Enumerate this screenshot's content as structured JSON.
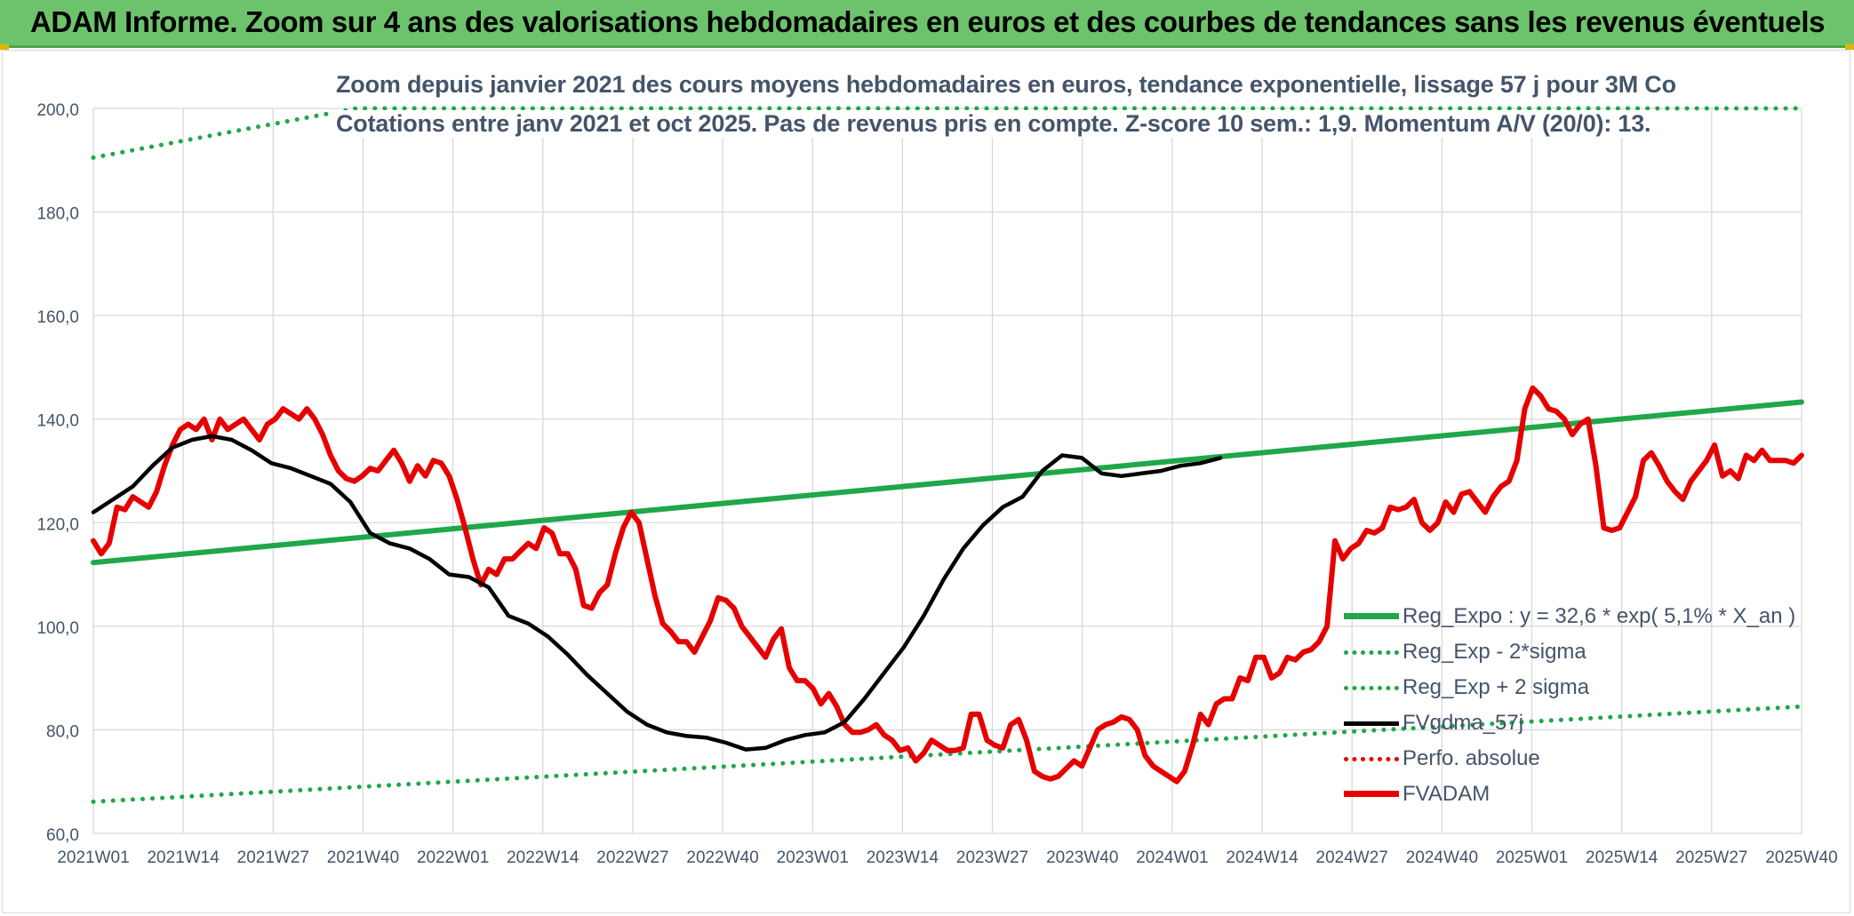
{
  "title": "ADAM Informe. Zoom sur 4 ans des valorisations hebdomadaires en euros et des courbes de tendances sans les revenus éventuels",
  "subtitle_1": "Zoom depuis janvier 2021 des cours moyens hebdomadaires en euros, tendance exponentielle, lissage 57 j pour 3M Co",
  "subtitle_2": "Cotations entre janv 2021 et oct 2025. Pas de revenus pris en compte. Z-score 10 sem.: 1,9. Momentum A/V (20/0): 13.",
  "colors": {
    "title_bar": "#6cc36b",
    "reg_expo": "#1fa74a",
    "sigma_bands": "#1fa74a",
    "fvgdma": "#000000",
    "perfo": "#e60000",
    "fvadam": "#e60000",
    "grid": "#d9d9d9",
    "axis_text": "#44546a"
  },
  "legend": [
    {
      "key": "reg_expo",
      "label": "Reg_Expo : y = 32,6 * exp( 5,1% *  X_an )",
      "style": "solid-thick"
    },
    {
      "key": "sigma_minus",
      "label": "Reg_Exp - 2*sigma",
      "style": "dotted"
    },
    {
      "key": "sigma_plus",
      "label": "Reg_Exp + 2 sigma",
      "style": "dotted"
    },
    {
      "key": "fvgdma",
      "label": "FVgdma_57j",
      "style": "solid"
    },
    {
      "key": "perfo",
      "label": "Perfo. absolue",
      "style": "dotted"
    },
    {
      "key": "fvadam",
      "label": "FVADAM",
      "style": "solid-thick"
    }
  ],
  "chart_data": {
    "type": "line",
    "x_tick_labels": [
      "2021W01",
      "2021W14",
      "2021W27",
      "2021W40",
      "2022W01",
      "2022W14",
      "2022W27",
      "2022W40",
      "2023W01",
      "2023W14",
      "2023W27",
      "2023W40",
      "2024W01",
      "2024W14",
      "2024W27",
      "2024W40",
      "2025W01",
      "2025W14",
      "2025W27",
      "2025W40"
    ],
    "y_tick_labels": [
      "60,0",
      "80,0",
      "100,0",
      "120,0",
      "140,0",
      "160,0",
      "180,0",
      "200,0"
    ],
    "ylim": [
      60,
      200
    ],
    "x_range_weeks": [
      0,
      247
    ],
    "grid": true,
    "legend_position": "bottom-right",
    "series": [
      {
        "key": "reg_expo",
        "name": "Reg_Expo : y = 32,6 * exp( 5,1% *  X_an )",
        "points": [
          [
            0,
            112.3
          ],
          [
            247,
            143.3
          ]
        ]
      },
      {
        "key": "sigma_minus",
        "name": "Reg_Exp - 2*sigma",
        "points": [
          [
            0,
            66.1
          ],
          [
            247,
            84.5
          ]
        ]
      },
      {
        "key": "sigma_plus",
        "name": "Reg_Exp + 2 sigma",
        "points": [
          [
            0,
            190.5
          ],
          [
            38,
            200
          ],
          [
            247,
            200
          ]
        ]
      },
      {
        "key": "fvgdma",
        "name": "FVgdma_57j",
        "points": [
          [
            0,
            122
          ],
          [
            5,
            124.5
          ],
          [
            10,
            127
          ],
          [
            15,
            131
          ],
          [
            20,
            134.5
          ],
          [
            25,
            136
          ],
          [
            30,
            136.7
          ],
          [
            35,
            136
          ],
          [
            40,
            134
          ],
          [
            45,
            131.5
          ],
          [
            50,
            130.5
          ],
          [
            55,
            129
          ],
          [
            60,
            127.5
          ],
          [
            65,
            124
          ],
          [
            70,
            118
          ],
          [
            75,
            116
          ],
          [
            80,
            115
          ],
          [
            85,
            113
          ],
          [
            90,
            110
          ],
          [
            95,
            109.5
          ],
          [
            100,
            107.5
          ],
          [
            105,
            102
          ],
          [
            110,
            100.5
          ],
          [
            115,
            98
          ],
          [
            120,
            94.5
          ],
          [
            125,
            90.5
          ],
          [
            130,
            87
          ],
          [
            135,
            83.5
          ],
          [
            140,
            81
          ],
          [
            145,
            79.5
          ],
          [
            150,
            78.8
          ],
          [
            155,
            78.5
          ],
          [
            160,
            77.5
          ],
          [
            165,
            76.2
          ],
          [
            170,
            76.5
          ],
          [
            175,
            78
          ],
          [
            180,
            79
          ],
          [
            185,
            79.5
          ],
          [
            190,
            81.5
          ],
          [
            195,
            86
          ],
          [
            200,
            91
          ],
          [
            205,
            96
          ],
          [
            210,
            102
          ],
          [
            215,
            109
          ],
          [
            220,
            115
          ],
          [
            225,
            119.5
          ],
          [
            230,
            123
          ],
          [
            235,
            125
          ],
          [
            240,
            130
          ],
          [
            245,
            133
          ],
          [
            250,
            132.5
          ],
          [
            255,
            129.5
          ],
          [
            260,
            129
          ],
          [
            265,
            129.5
          ],
          [
            270,
            130
          ],
          [
            275,
            131
          ],
          [
            280,
            131.5
          ],
          [
            285,
            132.5
          ]
        ]
      },
      {
        "key": "fvadam",
        "name": "FVADAM",
        "points": [
          [
            0,
            116.5
          ],
          [
            2,
            114
          ],
          [
            4,
            116
          ],
          [
            6,
            123
          ],
          [
            8,
            122.5
          ],
          [
            10,
            125
          ],
          [
            12,
            124
          ],
          [
            14,
            123
          ],
          [
            16,
            126
          ],
          [
            18,
            131
          ],
          [
            20,
            135
          ],
          [
            22,
            138
          ],
          [
            24,
            139
          ],
          [
            26,
            138
          ],
          [
            28,
            140
          ],
          [
            30,
            136
          ],
          [
            32,
            140
          ],
          [
            34,
            138
          ],
          [
            36,
            139
          ],
          [
            38,
            140
          ],
          [
            40,
            138
          ],
          [
            42,
            136
          ],
          [
            44,
            139
          ],
          [
            46,
            140
          ],
          [
            48,
            142
          ],
          [
            50,
            141
          ],
          [
            52,
            140
          ],
          [
            54,
            142
          ],
          [
            56,
            140
          ],
          [
            58,
            137
          ],
          [
            60,
            133
          ],
          [
            62,
            130
          ],
          [
            64,
            128.5
          ],
          [
            66,
            128
          ],
          [
            68,
            129
          ],
          [
            70,
            130.5
          ],
          [
            72,
            130
          ],
          [
            74,
            132
          ],
          [
            76,
            134
          ],
          [
            78,
            131.5
          ],
          [
            80,
            128
          ],
          [
            82,
            131
          ],
          [
            84,
            129
          ],
          [
            86,
            132
          ],
          [
            88,
            131.5
          ],
          [
            90,
            129
          ],
          [
            92,
            124.5
          ],
          [
            94,
            119
          ],
          [
            96,
            113
          ],
          [
            98,
            108
          ],
          [
            100,
            111
          ],
          [
            102,
            110
          ],
          [
            104,
            113
          ],
          [
            106,
            113
          ],
          [
            108,
            114.5
          ],
          [
            110,
            116
          ],
          [
            112,
            115
          ],
          [
            114,
            119
          ],
          [
            116,
            118
          ],
          [
            118,
            114
          ],
          [
            120,
            114
          ],
          [
            122,
            111
          ],
          [
            124,
            104
          ],
          [
            126,
            103.5
          ],
          [
            128,
            106.5
          ],
          [
            130,
            108
          ],
          [
            132,
            114
          ],
          [
            134,
            119
          ],
          [
            136,
            122
          ],
          [
            138,
            120
          ],
          [
            140,
            113
          ],
          [
            142,
            106
          ],
          [
            144,
            100.5
          ],
          [
            146,
            99
          ],
          [
            148,
            97
          ],
          [
            150,
            97
          ],
          [
            152,
            95
          ],
          [
            154,
            98
          ],
          [
            156,
            101
          ],
          [
            158,
            105.5
          ],
          [
            160,
            105
          ],
          [
            162,
            103.5
          ],
          [
            164,
            100
          ],
          [
            166,
            98
          ],
          [
            168,
            96
          ],
          [
            170,
            94
          ],
          [
            172,
            97.5
          ],
          [
            174,
            99.5
          ],
          [
            176,
            92
          ],
          [
            178,
            89.5
          ],
          [
            180,
            89.5
          ],
          [
            182,
            88
          ],
          [
            184,
            85
          ],
          [
            186,
            87
          ],
          [
            188,
            84.5
          ],
          [
            190,
            81
          ],
          [
            192,
            79.5
          ],
          [
            194,
            79.5
          ],
          [
            196,
            80
          ],
          [
            198,
            81
          ],
          [
            200,
            79
          ],
          [
            202,
            78
          ],
          [
            204,
            76
          ],
          [
            206,
            76.5
          ],
          [
            208,
            74
          ],
          [
            210,
            75.5
          ],
          [
            212,
            78
          ],
          [
            214,
            77
          ],
          [
            216,
            76
          ],
          [
            218,
            76
          ],
          [
            220,
            76.5
          ],
          [
            222,
            83
          ],
          [
            224,
            83
          ],
          [
            226,
            78
          ],
          [
            228,
            77
          ],
          [
            230,
            76.5
          ],
          [
            232,
            81
          ],
          [
            234,
            82
          ],
          [
            236,
            78
          ],
          [
            238,
            72
          ],
          [
            240,
            71
          ],
          [
            242,
            70.5
          ],
          [
            244,
            71
          ],
          [
            246,
            72.5
          ],
          [
            248,
            74
          ],
          [
            250,
            73
          ],
          [
            252,
            76.5
          ],
          [
            254,
            80
          ],
          [
            256,
            81
          ],
          [
            258,
            81.5
          ],
          [
            260,
            82.5
          ],
          [
            262,
            82
          ],
          [
            264,
            80
          ],
          [
            266,
            75
          ],
          [
            268,
            73
          ],
          [
            270,
            72
          ],
          [
            272,
            71
          ],
          [
            274,
            70
          ],
          [
            276,
            72
          ],
          [
            278,
            77
          ],
          [
            280,
            83
          ],
          [
            282,
            81
          ],
          [
            284,
            85
          ],
          [
            286,
            86
          ],
          [
            288,
            86
          ],
          [
            290,
            90
          ],
          [
            292,
            89.5
          ],
          [
            294,
            94
          ],
          [
            296,
            94
          ],
          [
            298,
            90
          ],
          [
            300,
            91
          ],
          [
            302,
            94
          ],
          [
            304,
            93.5
          ],
          [
            306,
            95
          ],
          [
            308,
            95.5
          ],
          [
            310,
            97
          ],
          [
            312,
            100
          ],
          [
            314,
            116.5
          ],
          [
            316,
            113
          ],
          [
            318,
            115
          ],
          [
            320,
            116
          ],
          [
            322,
            118.5
          ],
          [
            324,
            118
          ],
          [
            326,
            119
          ],
          [
            328,
            123
          ],
          [
            330,
            122.5
          ],
          [
            332,
            123
          ],
          [
            334,
            124.5
          ],
          [
            336,
            120
          ],
          [
            338,
            118.5
          ],
          [
            340,
            120
          ],
          [
            342,
            124
          ],
          [
            344,
            122
          ],
          [
            346,
            125.5
          ],
          [
            348,
            126
          ],
          [
            350,
            124
          ],
          [
            352,
            122
          ],
          [
            354,
            125
          ],
          [
            356,
            127
          ],
          [
            358,
            128
          ],
          [
            360,
            132
          ],
          [
            362,
            142
          ],
          [
            364,
            146
          ],
          [
            366,
            144.5
          ],
          [
            368,
            142
          ],
          [
            370,
            141.5
          ],
          [
            372,
            140
          ],
          [
            374,
            137
          ],
          [
            376,
            139
          ],
          [
            378,
            140
          ],
          [
            380,
            131
          ],
          [
            382,
            119
          ],
          [
            384,
            118.5
          ],
          [
            386,
            119
          ],
          [
            388,
            122
          ],
          [
            390,
            125
          ],
          [
            392,
            132
          ],
          [
            394,
            133.5
          ],
          [
            396,
            131
          ],
          [
            398,
            128
          ],
          [
            400,
            126
          ],
          [
            402,
            124.5
          ],
          [
            404,
            128
          ],
          [
            406,
            130
          ],
          [
            408,
            132
          ],
          [
            410,
            135
          ],
          [
            412,
            129
          ],
          [
            414,
            130
          ],
          [
            416,
            128.5
          ],
          [
            418,
            133
          ],
          [
            420,
            132
          ],
          [
            422,
            134
          ],
          [
            424,
            132
          ],
          [
            426,
            132
          ],
          [
            428,
            132
          ],
          [
            430,
            131.5
          ],
          [
            432,
            133
          ]
        ]
      }
    ]
  }
}
